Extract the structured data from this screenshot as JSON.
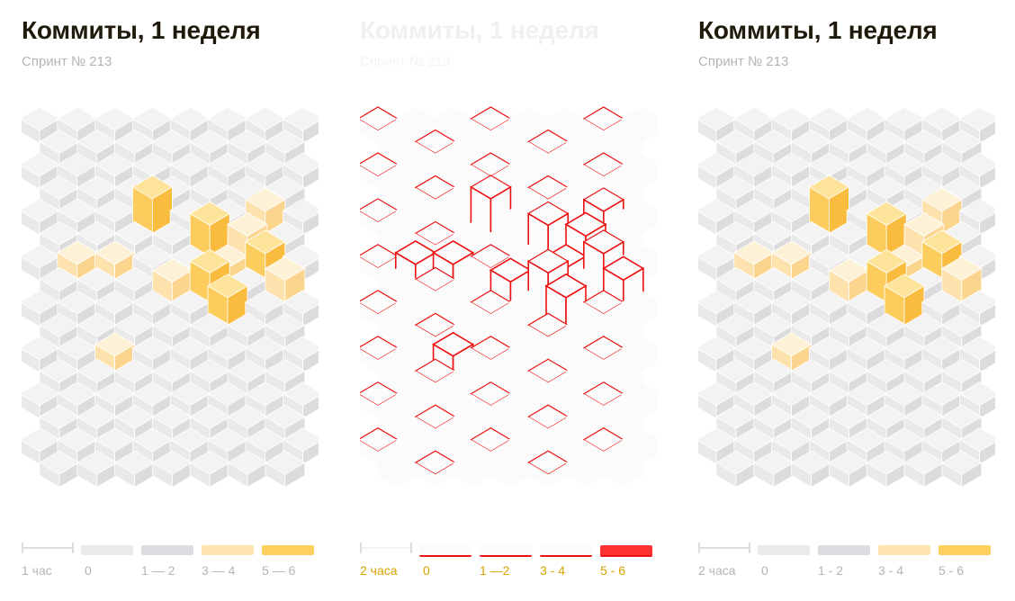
{
  "panels": [
    {
      "title": "Коммиты, 1 неделя",
      "subtitle": "Спринт № 213",
      "scale_label": "1 час",
      "legend": [
        {
          "label": "0",
          "color": "#ebebec"
        },
        {
          "label": "1 — 2",
          "color": "#dcdde2"
        },
        {
          "label": "3 — 4",
          "color": "#fde4b0"
        },
        {
          "label": "5 — 6",
          "color": "#fdcf5c"
        }
      ]
    },
    {
      "title": "Коммиты, 1 неделя",
      "subtitle": "Спринт № 213",
      "scale_label": "2 часа",
      "legend": [
        {
          "label": "0",
          "color": "#fbfbfb"
        },
        {
          "label": "1 —2",
          "color": "#fbfbfb"
        },
        {
          "label": "3 - 4",
          "color": "#fbfbfb"
        },
        {
          "label": "5 - 6",
          "color": "#f33"
        }
      ]
    },
    {
      "title": "Коммиты, 1 неделя",
      "subtitle": "Спринт № 213",
      "scale_label": "2 часа",
      "legend": [
        {
          "label": "0",
          "color": "#ebebec"
        },
        {
          "label": "1 - 2",
          "color": "#dcdde2"
        },
        {
          "label": "3 - 4",
          "color": "#fde4b0"
        },
        {
          "label": "5 - 6",
          "color": "#fdcf5c"
        }
      ]
    }
  ],
  "palette": {
    "gray_top": "#f3f3f4",
    "gray_left": "#e9e9ea",
    "gray_right": "#dcdcde",
    "mid_top": "#fdf1d6",
    "mid_left": "#fde2ad",
    "mid_right": "#fbd48d",
    "hot_top": "#fde49a",
    "hot_left": "#fccc5c",
    "hot_right": "#f9bc3e",
    "diff_stroke": "#ee1111"
  }
}
